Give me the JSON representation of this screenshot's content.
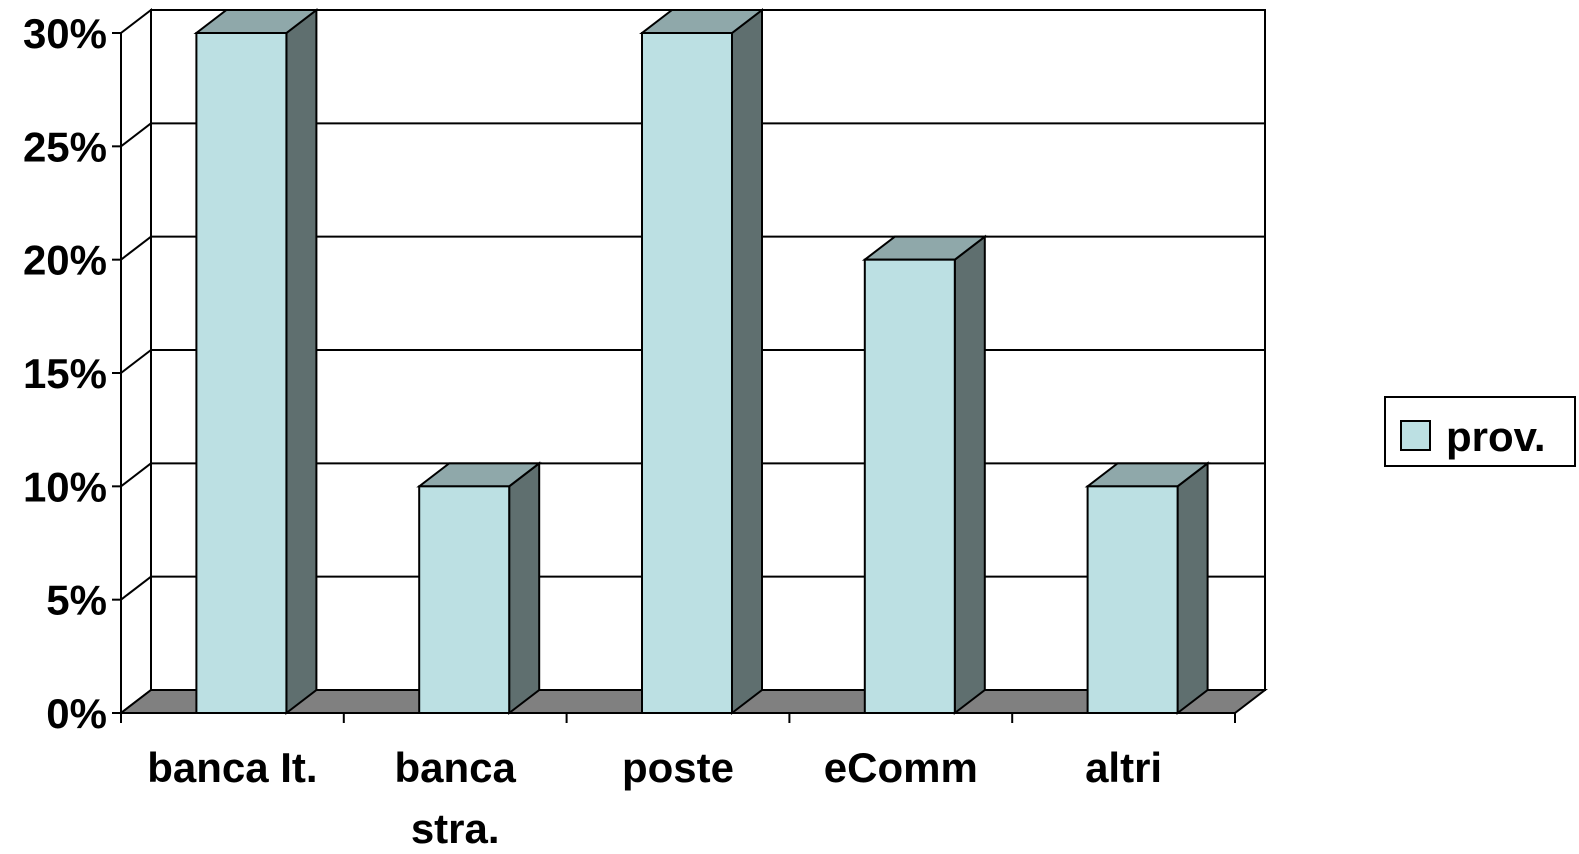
{
  "chart_data": {
    "type": "bar",
    "style": "3d-column",
    "categories": [
      [
        "banca It."
      ],
      [
        "banca",
        "stra."
      ],
      [
        "poste"
      ],
      [
        "eComm"
      ],
      [
        "altri"
      ]
    ],
    "series": [
      {
        "name": "prov.",
        "values": [
          30,
          10,
          30,
          20,
          10
        ]
      }
    ],
    "y_ticks": [
      "0%",
      "5%",
      "10%",
      "15%",
      "20%",
      "25%",
      "30%"
    ],
    "ylim": [
      0,
      30
    ],
    "grid": true,
    "legend_position": "right",
    "colors": {
      "front": "#BCE0E3",
      "side": "#5F6F6F",
      "top": "#8FA8AA",
      "floor": "#808080",
      "line": "#000000"
    }
  }
}
